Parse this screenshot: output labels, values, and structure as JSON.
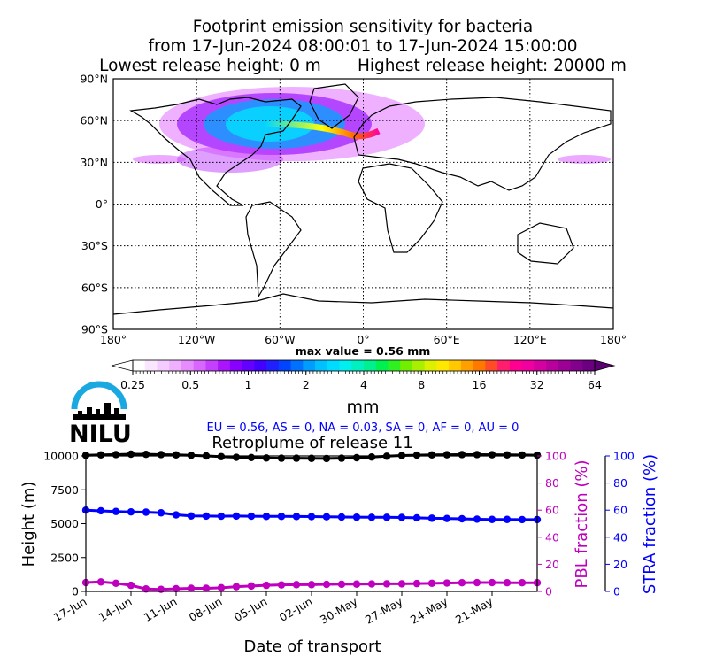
{
  "title_lines": [
    "Footprint emission sensitivity for bacteria",
    "from 17-Jun-2024 08:00:01 to 17-Jun-2024 15:00:00",
    "Lowest release height: 0 m       Highest release height: 20000 m"
  ],
  "map": {
    "lat_labels": [
      "90°N",
      "60°N",
      "30°N",
      "0°",
      "30°S",
      "60°S",
      "90°S"
    ],
    "lon_labels": [
      "180°",
      "120°W",
      "60°W",
      "0°",
      "60°E",
      "120°E",
      "180°"
    ],
    "max_value_label": "max value = 0.56 mm"
  },
  "colorbar": {
    "ticks": [
      "0.25",
      "0.5",
      "1",
      "2",
      "4",
      "8",
      "16",
      "32",
      "64"
    ],
    "unit": "mm"
  },
  "logo": {
    "text": "NILU"
  },
  "regions_text": "EU = 0.56,  AS = 0,  NA = 0.03,  SA = 0,  AF = 0,  AU = 0",
  "chart_data": {
    "type": "line",
    "title": "Retroplume of release 11",
    "xlabel": "Date of transport",
    "ylabel": "Height (m)",
    "y2label": "PBL fraction (%)",
    "y3label": "STRA fraction (%)",
    "x_tick_labels": [
      "17-Jun",
      "14-Jun",
      "11-Jun",
      "08-Jun",
      "05-Jun",
      "02-Jun",
      "30-May",
      "27-May",
      "24-May",
      "21-May"
    ],
    "x_days_back": [
      0,
      3,
      6,
      9,
      12,
      15,
      18,
      21,
      24,
      27
    ],
    "ylim": [
      0,
      10000
    ],
    "y_ticks": [
      0,
      2500,
      5000,
      7500,
      10000
    ],
    "y2lim": [
      0,
      100
    ],
    "y2_ticks": [
      0,
      20,
      40,
      60,
      80,
      100
    ],
    "y3lim": [
      0,
      100
    ],
    "y3_ticks": [
      0,
      20,
      40,
      60,
      80,
      100
    ],
    "xlim_days_back": [
      0,
      30
    ],
    "series": [
      {
        "color": "#000000",
        "axis": "left",
        "x_days_back": [
          0,
          1,
          2,
          3,
          4,
          5,
          6,
          7,
          8,
          9,
          10,
          11,
          12,
          13,
          14,
          15,
          16,
          17,
          18,
          19,
          20,
          21,
          22,
          23,
          24,
          25,
          26,
          27,
          28,
          29,
          30
        ],
        "values": [
          10050,
          10080,
          10100,
          10130,
          10120,
          10100,
          10080,
          10050,
          10000,
          9950,
          9900,
          9880,
          9850,
          9830,
          9830,
          9820,
          9810,
          9830,
          9870,
          9920,
          9980,
          10030,
          10060,
          10080,
          10090,
          10100,
          10100,
          10090,
          10080,
          10070,
          10060
        ]
      },
      {
        "color": "#0000ff",
        "axis": "left",
        "x_days_back": [
          0,
          1,
          2,
          3,
          4,
          5,
          6,
          7,
          8,
          9,
          10,
          11,
          12,
          13,
          14,
          15,
          16,
          17,
          18,
          19,
          20,
          21,
          22,
          23,
          24,
          25,
          26,
          27,
          28,
          29,
          30
        ],
        "values": [
          6000,
          5950,
          5900,
          5870,
          5850,
          5800,
          5650,
          5570,
          5560,
          5550,
          5560,
          5550,
          5540,
          5540,
          5530,
          5520,
          5510,
          5490,
          5480,
          5470,
          5470,
          5460,
          5430,
          5400,
          5380,
          5360,
          5330,
          5310,
          5310,
          5300,
          5300
        ]
      },
      {
        "color": "#bf00bf",
        "axis": "left",
        "x_days_back": [
          0,
          1,
          2,
          3,
          4,
          5,
          6,
          7,
          8,
          9,
          10,
          11,
          12,
          13,
          14,
          15,
          16,
          17,
          18,
          19,
          20,
          21,
          22,
          23,
          24,
          25,
          26,
          27,
          28,
          29,
          30
        ],
        "values": [
          650,
          700,
          600,
          450,
          180,
          150,
          200,
          230,
          230,
          270,
          350,
          400,
          450,
          480,
          500,
          500,
          520,
          530,
          540,
          550,
          560,
          560,
          580,
          600,
          620,
          640,
          650,
          650,
          640,
          640,
          640
        ]
      }
    ]
  }
}
